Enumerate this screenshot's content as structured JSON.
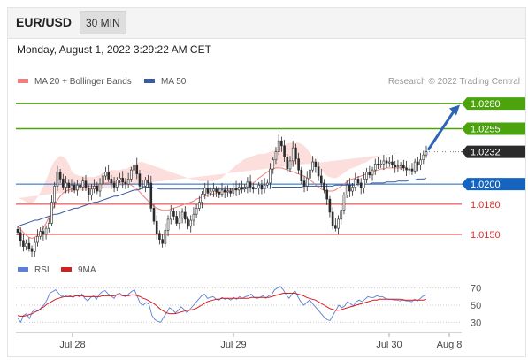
{
  "header": {
    "pair": "EUR/USD",
    "timeframe": "30 MIN"
  },
  "timestamp": "Monday, August 1, 2022 3:29:22 AM CET",
  "credit": "Research © 2022 Trading Central",
  "colors": {
    "bollinger": "#f08080",
    "ma50": "#3a5ba0",
    "green": "#4ca30d",
    "blue": "#1565c0",
    "red": "#e0312c",
    "candle_up": "#2b2b2b",
    "candle_down": "#2b2b2b",
    "rsi": "#5b7fd8",
    "rsi_ma": "#d41f1f",
    "arrow": "#2e64b8",
    "band": "#fbd9d7"
  },
  "chart_data": [
    {
      "type": "candlestick",
      "legend": [
        {
          "name": "MA 20 + Bollinger Bands",
          "color": "#f08080"
        },
        {
          "name": "MA 50",
          "color": "#3a5ba0"
        }
      ],
      "ylim": [
        1.0128,
        1.0295
      ],
      "x_ticks": [
        "Jul 28",
        "Jul 29",
        "Jul 30",
        "Aug 8"
      ],
      "levels": [
        {
          "value": 1.028,
          "label": "1.0280",
          "kind": "resistance"
        },
        {
          "value": 1.0255,
          "label": "1.0255",
          "kind": "resistance"
        },
        {
          "value": 1.0232,
          "label": "1.0232",
          "kind": "last"
        },
        {
          "value": 1.02,
          "label": "1.0200",
          "kind": "pivot"
        },
        {
          "value": 1.018,
          "label": "1.0180",
          "kind": "support"
        },
        {
          "value": 1.015,
          "label": "1.0150",
          "kind": "support"
        }
      ],
      "close": [
        1.0152,
        1.0144,
        1.0138,
        1.0141,
        1.0136,
        1.0133,
        1.0142,
        1.0148,
        1.0153,
        1.015,
        1.0156,
        1.0161,
        1.0182,
        1.0198,
        1.0212,
        1.0205,
        1.0197,
        1.0201,
        1.0196,
        1.0199,
        1.0194,
        1.0199,
        1.0197,
        1.0203,
        1.0196,
        1.0189,
        1.0195,
        1.0198,
        1.0193,
        1.02,
        1.0208,
        1.0212,
        1.0205,
        1.0201,
        1.0197,
        1.0204,
        1.0206,
        1.0202,
        1.02,
        1.0205,
        1.0214,
        1.0219,
        1.021,
        1.0198,
        1.0198,
        1.0204,
        1.0201,
        1.0176,
        1.0163,
        1.0151,
        1.0145,
        1.0141,
        1.0154,
        1.0165,
        1.0173,
        1.0168,
        1.0161,
        1.0166,
        1.0172,
        1.0165,
        1.0158,
        1.0164,
        1.017,
        1.0176,
        1.0182,
        1.019,
        1.0196,
        1.0191,
        1.0193,
        1.0195,
        1.0192,
        1.019,
        1.0194,
        1.0192,
        1.0193,
        1.0191,
        1.0196,
        1.0194,
        1.0197,
        1.0195,
        1.0197,
        1.0202,
        1.0197,
        1.0195,
        1.0196,
        1.0199,
        1.0195,
        1.0199,
        1.0201,
        1.0215,
        1.0224,
        1.0232,
        1.0243,
        1.0238,
        1.0227,
        1.0215,
        1.0223,
        1.0236,
        1.0225,
        1.0214,
        1.0203,
        1.0198,
        1.0206,
        1.0214,
        1.0222,
        1.0217,
        1.0208,
        1.0201,
        1.0194,
        1.0185,
        1.0172,
        1.0159,
        1.0156,
        1.0165,
        1.0174,
        1.0189,
        1.0199,
        1.0193,
        1.0197,
        1.0205,
        1.0201,
        1.0196,
        1.0205,
        1.0212,
        1.0209,
        1.0214,
        1.022,
        1.0219,
        1.022,
        1.0223,
        1.0221,
        1.0222,
        1.0219,
        1.0217,
        1.0218,
        1.0219,
        1.0216,
        1.0214,
        1.0215,
        1.0213,
        1.0222,
        1.0219,
        1.0224,
        1.0229,
        1.0232
      ],
      "ma50": [
        1.0158,
        1.0159,
        1.016,
        1.0161,
        1.0162,
        1.0163,
        1.0164,
        1.0164,
        1.0165,
        1.0166,
        1.0167,
        1.0168,
        1.0169,
        1.017,
        1.017,
        1.0171,
        1.0172,
        1.0173,
        1.0174,
        1.0175,
        1.0176,
        1.0176,
        1.0177,
        1.0178,
        1.0179,
        1.018,
        1.0181,
        1.0182,
        1.0182,
        1.0183,
        1.0184,
        1.0185,
        1.0186,
        1.0187,
        1.0188,
        1.0188,
        1.0189,
        1.019,
        1.0191,
        1.0192,
        1.0193,
        1.0194,
        1.0194,
        1.0195,
        1.0196,
        1.0197,
        1.0197,
        1.0197,
        1.0196,
        1.0196,
        1.0195,
        1.0195,
        1.0195,
        1.0195,
        1.0195,
        1.0195,
        1.0195,
        1.0195,
        1.0195,
        1.0195,
        1.0195,
        1.0195,
        1.0195,
        1.0195,
        1.0195,
        1.0195,
        1.0195,
        1.0195,
        1.0195,
        1.0195,
        1.0195,
        1.0195,
        1.0195,
        1.0195,
        1.0195,
        1.0195,
        1.0195,
        1.0195,
        1.0195,
        1.0195,
        1.0195,
        1.0196,
        1.0196,
        1.0196,
        1.0196,
        1.0196,
        1.0196,
        1.0196,
        1.0196,
        1.0196,
        1.0197,
        1.0197,
        1.0197,
        1.0197,
        1.0197,
        1.0197,
        1.0197,
        1.0197,
        1.0197,
        1.0197,
        1.0197,
        1.0198,
        1.0198,
        1.0198,
        1.0198,
        1.0198,
        1.0198,
        1.0198,
        1.0198,
        1.0198,
        1.0198,
        1.0198,
        1.0199,
        1.0199,
        1.0199,
        1.0199,
        1.0199,
        1.0199,
        1.0199,
        1.0199,
        1.02,
        1.02,
        1.02,
        1.02,
        1.02,
        1.0201,
        1.0201,
        1.0201,
        1.0201,
        1.0201,
        1.0202,
        1.0202,
        1.0202,
        1.0202,
        1.0203,
        1.0203,
        1.0203,
        1.0203,
        1.0204,
        1.0204,
        1.0204,
        1.0205,
        1.0205,
        1.0205,
        1.0206
      ],
      "ma20": [
        1.0158,
        1.0155,
        1.0152,
        1.0149,
        1.0147,
        1.0146,
        1.0147,
        1.0149,
        1.0152,
        1.0156,
        1.0161,
        1.0167,
        1.0173,
        1.0179,
        1.0184,
        1.0188,
        1.0191,
        1.0193,
        1.0194,
        1.0195,
        1.0196,
        1.0197,
        1.0198,
        1.0198,
        1.0198,
        1.0198,
        1.0198,
        1.0198,
        1.0198,
        1.0199,
        1.02,
        1.0201,
        1.0201,
        1.0202,
        1.0202,
        1.0202,
        1.0202,
        1.0202,
        1.0201,
        1.02,
        1.0199,
        1.0197,
        1.0195,
        1.0192,
        1.0189,
        1.0186,
        1.0183,
        1.018,
        1.0178,
        1.0176,
        1.0175,
        1.0174,
        1.0174,
        1.0174,
        1.0175,
        1.0176,
        1.0177,
        1.0178,
        1.0179,
        1.018,
        1.0181,
        1.0182,
        1.0183,
        1.0185,
        1.0186,
        1.0187,
        1.0188,
        1.0189,
        1.019,
        1.019,
        1.0191,
        1.0192,
        1.0192,
        1.0193,
        1.0193,
        1.0194,
        1.0194,
        1.0195,
        1.0195,
        1.0196,
        1.0197,
        1.0198,
        1.0199,
        1.0201,
        1.0203,
        1.0206,
        1.0208,
        1.021,
        1.0212,
        1.0214,
        1.0215,
        1.0216,
        1.0216,
        1.0216,
        1.0215,
        1.0214,
        1.0213,
        1.0212,
        1.0211,
        1.021,
        1.0209,
        1.0208,
        1.0206,
        1.0204,
        1.0202,
        1.0199,
        1.0197,
        1.0195,
        1.0194,
        1.0193,
        1.0193,
        1.0193,
        1.0194,
        1.0196,
        1.0198,
        1.02,
        1.0202,
        1.0204,
        1.0205,
        1.0206,
        1.0207,
        1.0208,
        1.0209,
        1.021,
        1.0211,
        1.0212,
        1.0213,
        1.0214,
        1.0215,
        1.0215,
        1.0216,
        1.0216,
        1.0216,
        1.0216,
        1.0216,
        1.0216,
        1.0216,
        1.0217
      ],
      "bb_width": [
        0.0028,
        0.003,
        0.0032,
        0.0033,
        0.0034,
        0.0035,
        0.0036,
        0.0038,
        0.004,
        0.0042,
        0.0043,
        0.0044,
        0.0045,
        0.0044,
        0.0042,
        0.004,
        0.0036,
        0.0032,
        0.0026,
        0.0018,
        0.0014,
        0.0012,
        0.001,
        0.001,
        0.0009,
        0.0009,
        0.0009,
        0.0009,
        0.001,
        0.001,
        0.0011,
        0.0011,
        0.0012,
        0.0012,
        0.0012,
        0.0012,
        0.0012,
        0.0013,
        0.0014,
        0.0016,
        0.0019,
        0.0022,
        0.0026,
        0.003,
        0.0033,
        0.0035,
        0.0037,
        0.0039,
        0.004,
        0.0041,
        0.0041,
        0.0041,
        0.004,
        0.0039,
        0.0037,
        0.0035,
        0.0033,
        0.0031,
        0.0029,
        0.0027,
        0.0025,
        0.0023,
        0.0021,
        0.0019,
        0.0017,
        0.0016,
        0.0015,
        0.0014,
        0.0013,
        0.0013,
        0.0013,
        0.0013,
        0.0014,
        0.0016,
        0.0018,
        0.002,
        0.0022,
        0.0024,
        0.0026,
        0.0027,
        0.0028,
        0.0028,
        0.0028,
        0.0027,
        0.0026,
        0.0024,
        0.0022,
        0.002,
        0.0019,
        0.0018,
        0.0018,
        0.0019,
        0.002,
        0.0022,
        0.0024,
        0.0026,
        0.0028,
        0.0029,
        0.003,
        0.0031,
        0.0031,
        0.003,
        0.0029,
        0.0027,
        0.0025,
        0.0023,
        0.0021,
        0.0019,
        0.0017,
        0.0015,
        0.0014,
        0.0013,
        0.0012,
        0.0011,
        0.0011,
        0.0011,
        0.0011,
        0.0011,
        0.0011,
        0.0011,
        0.0011,
        0.0012,
        0.0012,
        0.0012,
        0.0013,
        0.0013,
        0.0013,
        0.0013,
        0.0014,
        0.0014,
        0.0014,
        0.0014,
        0.0014,
        0.0015,
        0.0015,
        0.0015
      ]
    },
    {
      "type": "line",
      "legend": [
        {
          "name": "RSI",
          "color": "#5b7fd8"
        },
        {
          "name": "9MA",
          "color": "#d41f1f"
        }
      ],
      "ylim": [
        22,
        78
      ],
      "y_ticks": [
        70,
        50,
        30
      ],
      "rsi": [
        35,
        30,
        38,
        40,
        34,
        42,
        45,
        43,
        47,
        50,
        56,
        64,
        66,
        68,
        64,
        60,
        62,
        60,
        61,
        59,
        62,
        60,
        63,
        58,
        55,
        59,
        61,
        57,
        63,
        66,
        67,
        63,
        61,
        58,
        63,
        64,
        61,
        60,
        63,
        66,
        68,
        60,
        52,
        50,
        53,
        51,
        38,
        33,
        31,
        30,
        36,
        41,
        47,
        45,
        41,
        44,
        48,
        45,
        41,
        45,
        49,
        53,
        57,
        61,
        63,
        58,
        59,
        60,
        57,
        56,
        59,
        57,
        58,
        56,
        59,
        57,
        60,
        58,
        60,
        61,
        63,
        59,
        58,
        59,
        61,
        58,
        61,
        62,
        68,
        70,
        72,
        68,
        62,
        58,
        63,
        67,
        60,
        54,
        50,
        53,
        56,
        52,
        48,
        44,
        40,
        36,
        33,
        32,
        38,
        44,
        50,
        47,
        49,
        54,
        52,
        49,
        54,
        56,
        54,
        57,
        60,
        59,
        59,
        61,
        60,
        60,
        58,
        57,
        57,
        56,
        56,
        55,
        57,
        55,
        55,
        54,
        57,
        55,
        58,
        61,
        62
      ],
      "rsi_ma": [
        38,
        37,
        37,
        38,
        39,
        40,
        42,
        44,
        46,
        48,
        51,
        53,
        55,
        57,
        58,
        59,
        60,
        60,
        60,
        60,
        61,
        61,
        61,
        60,
        60,
        60,
        60,
        60,
        60,
        61,
        61,
        61,
        61,
        61,
        62,
        62,
        61,
        61,
        61,
        62,
        62,
        61,
        60,
        58,
        57,
        55,
        53,
        51,
        48,
        45,
        43,
        41,
        40,
        40,
        40,
        41,
        42,
        43,
        44,
        44,
        45,
        46,
        48,
        50,
        52,
        54,
        55,
        56,
        57,
        57,
        58,
        58,
        58,
        58,
        58,
        58,
        58,
        58,
        58,
        58,
        59,
        59,
        59,
        59,
        59,
        59,
        59,
        60,
        61,
        62,
        63,
        64,
        64,
        64,
        64,
        64,
        63,
        62,
        61,
        59,
        58,
        57,
        56,
        54,
        52,
        50,
        48,
        46,
        45,
        44,
        44,
        45,
        46,
        47,
        48,
        49,
        50,
        51,
        52,
        53,
        54,
        55,
        56,
        56,
        57,
        57,
        57,
        57,
        57,
        57,
        57,
        57,
        56,
        56,
        56,
        56,
        56,
        56,
        56,
        56,
        57
      ]
    }
  ]
}
